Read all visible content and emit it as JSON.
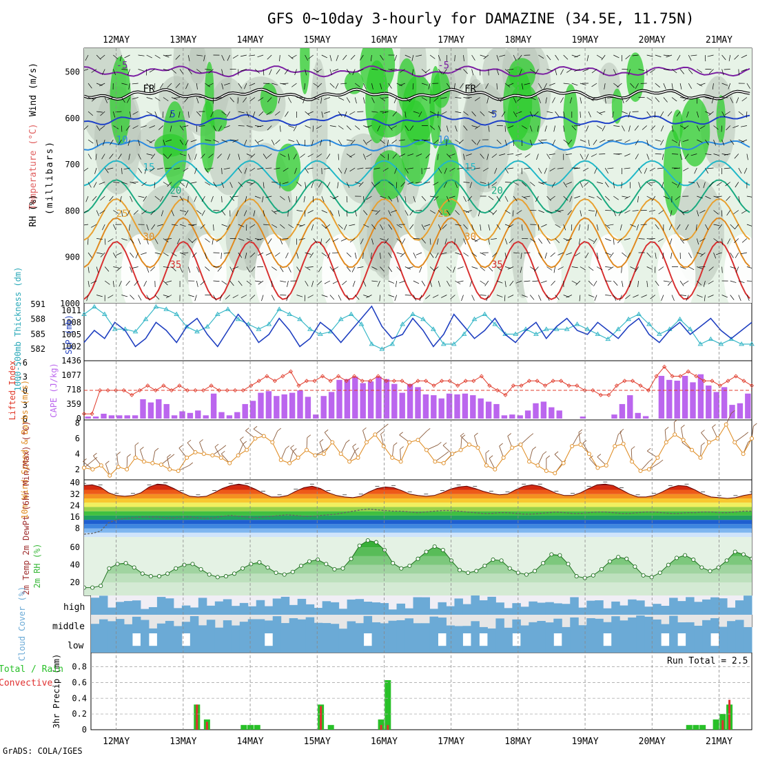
{
  "title": "GFS 0~10day 3-hourly for DAMAZINE (34.5E, 11.75N)",
  "credit": "GrADS: COLA/IGES",
  "days": [
    "12MAY",
    "13MAY",
    "14MAY",
    "15MAY",
    "16MAY",
    "17MAY",
    "18MAY",
    "19MAY",
    "20MAY",
    "21MAY"
  ],
  "colors": {
    "rh_green": "#2ecc2e",
    "rh_light": "#e7f3e7",
    "rh_gray": "#b8c2b8",
    "temp_cold": "#7b1fa2",
    "temp_mid": "#1e40c8",
    "temp_warm": "#e08a20",
    "temp_hot": "#d83030",
    "slp": "#1f3fc0",
    "thickness": "#3ab8c8",
    "lifted": "#e03a2a",
    "cape": "#bb66ee",
    "wind": "#e0902a",
    "rh2m": "#38b838",
    "cloud": "#6baad6",
    "precip_total": "#28c028",
    "precip_conv": "#e03030"
  },
  "chart_data": [
    {
      "type": "contour",
      "panel": "upper-air",
      "ylabel": "(millibars)",
      "legend_labels": [
        "Wind (m/s)",
        "Temperature (°C)",
        "RH (%)"
      ],
      "yticks": [
        500,
        600,
        700,
        800,
        900,
        1000
      ],
      "ylim": [
        1000,
        450
      ],
      "contour_labels": [
        "-5",
        "FR",
        "5",
        "10",
        "15",
        "20",
        "25",
        "30",
        "35"
      ],
      "isotherms": [
        {
          "label": "-5",
          "level": 500
        },
        {
          "label": "FR",
          "level": 550
        },
        {
          "label": "5",
          "level": 605
        },
        {
          "label": "10",
          "level": 660
        },
        {
          "label": "15",
          "level": 720
        },
        {
          "label": "20",
          "level": 770
        },
        {
          "label": "25",
          "level": 820
        },
        {
          "label": "30",
          "level": 870
        },
        {
          "label": "35",
          "level": 930
        }
      ]
    },
    {
      "type": "line",
      "panel": "slp-thickness",
      "ylabel_left": "1000-500mb Thickness (dm)",
      "ylabel_right": "SLP (mb)",
      "left_ticks": [
        582,
        585,
        588,
        591
      ],
      "right_ticks": [
        1002,
        1005,
        1008,
        1011
      ],
      "series": [
        {
          "name": "SLP (mb)",
          "values": [
            1003,
            1006,
            1004,
            1008,
            1006,
            1002,
            1004,
            1008,
            1006,
            1003,
            1007,
            1009,
            1005,
            1002,
            1006,
            1010,
            1007,
            1003,
            1005,
            1009,
            1006,
            1002,
            1004,
            1008,
            1006,
            1003,
            1006,
            1009,
            1012,
            1007,
            1004,
            1005,
            1009,
            1006,
            1002,
            1005,
            1010,
            1007,
            1004,
            1006,
            1009,
            1005,
            1003,
            1006,
            1008,
            1004,
            1007,
            1009,
            1006,
            1005,
            1008,
            1006,
            1004,
            1007,
            1009,
            1005,
            1003,
            1006,
            1008,
            1005,
            1007,
            1009,
            1006,
            1004,
            1006,
            1008
          ]
        },
        {
          "name": "1000-500mb Thickness (dm)",
          "values": [
            589,
            590.5,
            589,
            586,
            586,
            585.5,
            588,
            590.5,
            590,
            589,
            586.5,
            585.5,
            586.5,
            589,
            590,
            588,
            587,
            586,
            587,
            590,
            589,
            588,
            586,
            585,
            585.5,
            588,
            589,
            587,
            583,
            582,
            583,
            587,
            589,
            588,
            586,
            583,
            583,
            585,
            588,
            589,
            587,
            585,
            585,
            586,
            585,
            586,
            586,
            586,
            587,
            586,
            585,
            584,
            586,
            588,
            589,
            587,
            585,
            586,
            588,
            586,
            583,
            584,
            583,
            584,
            583,
            583
          ]
        }
      ]
    },
    {
      "type": "bar",
      "panel": "lifted-cape",
      "ylabel_left": "Lifted Index",
      "ylabel_right": "CAPE (J/kg)",
      "left_ticks": [
        "-6",
        "-3",
        "0",
        "3",
        "6"
      ],
      "right_ticks": [
        0,
        359,
        718,
        1077,
        1436
      ],
      "series": [
        {
          "name": "CAPE (J/kg)",
          "values": [
            50,
            50,
            120,
            80,
            80,
            80,
            80,
            480,
            400,
            480,
            360,
            80,
            180,
            140,
            200,
            80,
            620,
            160,
            80,
            160,
            360,
            440,
            640,
            680,
            560,
            600,
            640,
            700,
            540,
            100,
            560,
            660,
            960,
            980,
            1040,
            880,
            920,
            1040,
            980,
            860,
            640,
            860,
            780,
            600,
            580,
            500,
            620,
            600,
            620,
            580,
            500,
            420,
            360,
            80,
            100,
            80,
            200,
            380,
            420,
            280,
            200,
            0,
            0,
            50,
            0,
            0,
            0,
            100,
            360,
            580,
            140,
            60,
            0,
            1060,
            960,
            940,
            1060,
            900,
            1100,
            820,
            660,
            780,
            340,
            380,
            620
          ]
        },
        {
          "name": "Lifted Index",
          "values": [
            5,
            5,
            0,
            0,
            0,
            0,
            1,
            0,
            -1,
            0,
            -1,
            0,
            -1,
            0,
            0,
            0,
            -1,
            0,
            0,
            0,
            0,
            -1,
            -2,
            -3,
            -2,
            -3,
            -4,
            -1,
            -2,
            -2,
            -3,
            -2,
            -3,
            -2,
            -3,
            -2,
            -2,
            -3,
            -2,
            -2,
            -2,
            -1,
            -2,
            -2,
            -1,
            -2,
            -2,
            -1,
            -2,
            -2,
            -3,
            -1,
            0,
            1,
            -1,
            -1,
            -2,
            -2,
            -1,
            -2,
            -2,
            -1,
            -1,
            0,
            0,
            1,
            1,
            -1,
            -2,
            -2,
            -1,
            0,
            -3,
            -5,
            -3,
            -3,
            -4,
            -3,
            -2,
            -2,
            -1,
            -2,
            -3,
            -2,
            -1
          ]
        }
      ]
    },
    {
      "type": "line",
      "panel": "wind10m",
      "ylabel": "10m Wind Speed & Barbs (m/s)",
      "yticks": [
        2,
        4,
        6,
        8
      ],
      "ylim": [
        1,
        8
      ],
      "series": [
        {
          "name": "10m Wind Speed",
          "values": [
            2.2,
            2.0,
            2.5,
            1.2,
            2.3,
            2.0,
            3.5,
            3.0,
            2.8,
            2.6,
            2.0,
            1.8,
            3.5,
            4.2,
            4.0,
            3.8,
            3.5,
            2.8,
            3.8,
            4.5,
            6.0,
            6.3,
            5.5,
            3.2,
            2.8,
            3.5,
            4.5,
            3.8,
            4.0,
            5.5,
            4.0,
            3.0,
            3.5,
            5.5,
            6.5,
            5.0,
            3.5,
            3.0,
            5.5,
            5.8,
            4.5,
            3.0,
            2.8,
            4.0,
            4.5,
            5.2,
            4.8,
            2.5,
            2.0,
            3.5,
            4.8,
            5.2,
            3.0,
            2.5,
            1.8,
            1.5,
            2.8,
            5.0,
            5.2,
            4.0,
            2.2,
            2.5,
            5.0,
            5.3,
            3.0,
            1.8,
            2.0,
            3.5,
            5.5,
            6.5,
            5.8,
            4.5,
            3.5,
            5.5,
            6.0,
            7.8,
            5.5,
            4.0,
            6.0
          ]
        }
      ]
    },
    {
      "type": "area",
      "panel": "temp2m",
      "ylabel": "2m Temp 2m DewPt (6hr Min/Max) (°C)",
      "yticks": [
        8,
        16,
        24,
        32,
        40
      ],
      "ylim": [
        2,
        42
      ],
      "series": [
        {
          "name": "2m Temp",
          "values": [
            38,
            38.5,
            37,
            33,
            31,
            30.5,
            31,
            33,
            37,
            39,
            38.5,
            36,
            33,
            30.5,
            30,
            30.5,
            33,
            36,
            38,
            39,
            38,
            35.5,
            32.5,
            30,
            30,
            31,
            34,
            36.5,
            37.5,
            36,
            33,
            31,
            30,
            29.5,
            30.5,
            33.5,
            36,
            37,
            36.5,
            34.5,
            32,
            31,
            30.5,
            31,
            33,
            35.5,
            37,
            37.5,
            36,
            34,
            32.5,
            31.5,
            32,
            35,
            37.5,
            38.5,
            37.5,
            35,
            32.5,
            31,
            31,
            33,
            36,
            38.5,
            39,
            38,
            35,
            32,
            30,
            30,
            31,
            33.5,
            36.5,
            38,
            37.5,
            35,
            32,
            30,
            29.5,
            29,
            29.5,
            31,
            32
          ]
        },
        {
          "name": "2m DewPt",
          "values": [
            4,
            4.5,
            6,
            12,
            14,
            15,
            15.5,
            16,
            16,
            16,
            15.5,
            15.5,
            16,
            16,
            15.5,
            15,
            15.5,
            16.5,
            17,
            16.5,
            16,
            15.5,
            16,
            16.5,
            17,
            17.5,
            17,
            16.5,
            16.5,
            17,
            17.5,
            18,
            19,
            20,
            21,
            21.5,
            21,
            20.5,
            20,
            20,
            19.5,
            19,
            19.5,
            20,
            20.5,
            20.5,
            20,
            19.5,
            19,
            18.5,
            18.5,
            19,
            19,
            18.5,
            18,
            18,
            18.5,
            19,
            19.5,
            19,
            18.5,
            18.5,
            19,
            19.5,
            19.5,
            19,
            18.5,
            18.5,
            19,
            19.5,
            19.5,
            19,
            18.5,
            18.5,
            19,
            19,
            19.5,
            19.5,
            19,
            19,
            19.5,
            20,
            20
          ]
        }
      ]
    },
    {
      "type": "area",
      "panel": "rh2m",
      "ylabel": "2m RH (%)",
      "yticks": [
        20,
        40,
        60
      ],
      "ylim": [
        5,
        72
      ],
      "series": [
        {
          "name": "2m RH",
          "values": [
            14,
            14,
            16,
            36,
            41,
            42,
            37,
            30,
            27,
            27,
            30,
            36,
            40,
            41,
            35,
            29,
            26,
            27,
            30,
            36,
            41,
            43,
            37,
            31,
            29,
            32,
            39,
            44,
            46,
            41,
            35,
            36,
            47,
            62,
            68,
            66,
            57,
            42,
            36,
            39,
            47,
            55,
            61,
            57,
            45,
            34,
            31,
            33,
            39,
            46,
            45,
            36,
            31,
            29,
            33,
            42,
            52,
            51,
            41,
            27,
            25,
            28,
            35,
            44,
            49,
            47,
            38,
            28,
            26,
            31,
            40,
            48,
            51,
            46,
            37,
            33,
            37,
            45,
            55,
            52,
            47
          ]
        }
      ]
    },
    {
      "type": "heatmap",
      "panel": "cloud-cover",
      "ylabel": "Cloud Cover (%)",
      "rows": [
        "high",
        "middle",
        "low"
      ]
    },
    {
      "type": "bar",
      "panel": "precip",
      "ylabel": "3hr Precip (mm)",
      "legend_labels": [
        "Total / Rain",
        "Convective"
      ],
      "annotation": "Run Total = 2.5",
      "yticks": [
        "0",
        "0.2",
        "0.4",
        "0.6",
        "0.8"
      ],
      "ylim": [
        0,
        0.98
      ],
      "series": [
        {
          "name": "Total / Rain",
          "points": [
            [
              13.9,
              0.06
            ],
            [
              13.2,
              0.32
            ],
            [
              13.35,
              0.13
            ],
            [
              14.0,
              0.06
            ],
            [
              14.1,
              0.06
            ],
            [
              15.05,
              0.32
            ],
            [
              15.2,
              0.06
            ],
            [
              15.95,
              0.13
            ],
            [
              16.05,
              0.63
            ],
            [
              20.55,
              0.06
            ],
            [
              20.65,
              0.06
            ],
            [
              20.75,
              0.06
            ],
            [
              20.95,
              0.13
            ],
            [
              21.05,
              0.2
            ],
            [
              21.15,
              0.32
            ]
          ]
        },
        {
          "name": "Convective",
          "points": [
            [
              13.2,
              0.32
            ],
            [
              13.35,
              0.1
            ],
            [
              15.05,
              0.3
            ],
            [
              15.95,
              0.06
            ],
            [
              16.05,
              0.06
            ],
            [
              21.05,
              0.12
            ],
            [
              21.15,
              0.38
            ]
          ]
        }
      ]
    }
  ]
}
